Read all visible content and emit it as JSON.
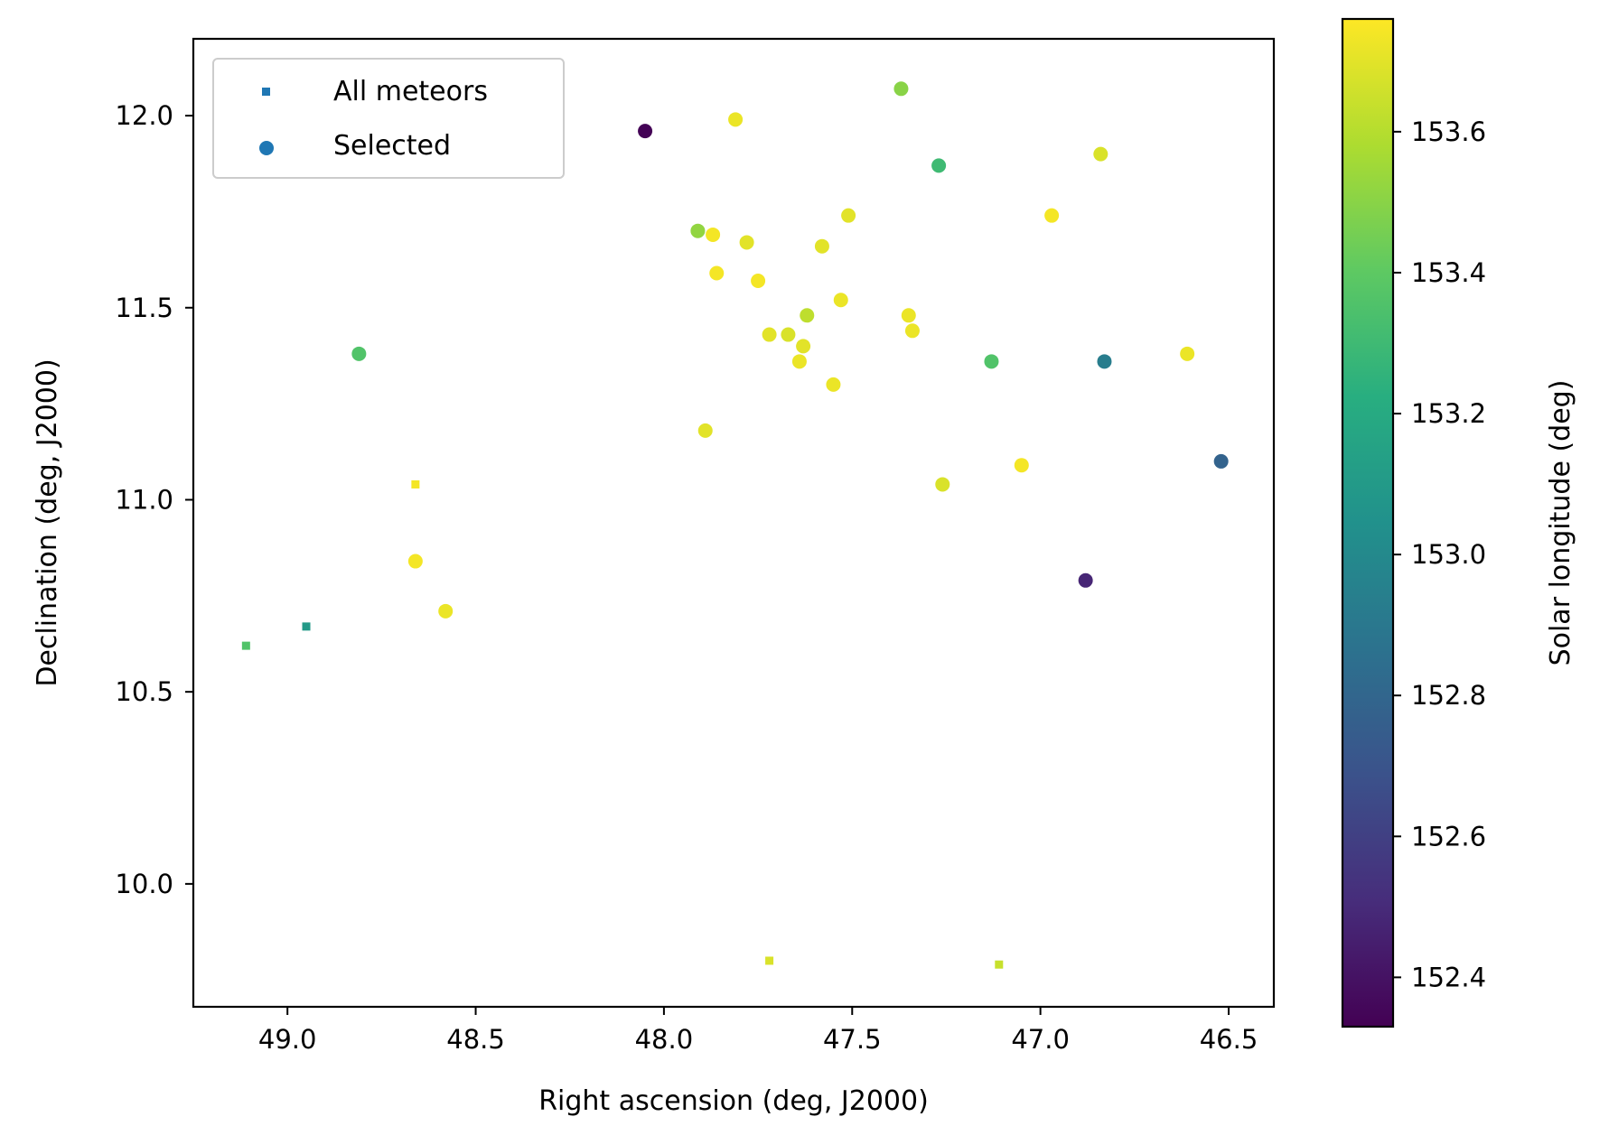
{
  "chart_data": {
    "type": "scatter",
    "xlabel": "Right ascension (deg, J2000)",
    "ylabel": "Declination (deg, J2000)",
    "xlim": [
      49.25,
      46.38
    ],
    "ylim": [
      9.68,
      12.2
    ],
    "x_inverted": true,
    "xticks": [
      49.0,
      48.5,
      48.0,
      47.5,
      47.0,
      46.5
    ],
    "yticks": [
      10.0,
      10.5,
      11.0,
      11.5,
      12.0
    ],
    "xtick_labels": [
      "49.0",
      "48.5",
      "48.0",
      "47.5",
      "47.0",
      "46.5"
    ],
    "ytick_labels": [
      "10.0",
      "10.5",
      "11.0",
      "11.5",
      "12.0"
    ],
    "grid": false,
    "legend": {
      "placement": "top-left",
      "entries": [
        {
          "label": "All meteors",
          "marker": "square",
          "color": "#1f77b4"
        },
        {
          "label": "Selected",
          "marker": "circle",
          "color": "#1f77b4"
        }
      ]
    },
    "colorbar": {
      "label": "Solar longitude (deg)",
      "colormap": "viridis",
      "range": [
        152.33,
        153.76
      ],
      "ticks": [
        152.4,
        152.6,
        152.8,
        153.0,
        153.2,
        153.4,
        153.6
      ],
      "tick_labels": [
        "152.4",
        "152.6",
        "152.8",
        "153.0",
        "153.2",
        "153.4",
        "153.6"
      ]
    },
    "series": [
      {
        "name": "All meteors",
        "marker": "square",
        "points": [
          {
            "x": 49.11,
            "y": 10.62,
            "c": 153.36
          },
          {
            "x": 48.95,
            "y": 10.67,
            "c": 153.1
          },
          {
            "x": 48.66,
            "y": 11.04,
            "c": 153.74
          },
          {
            "x": 47.72,
            "y": 9.8,
            "c": 153.68
          },
          {
            "x": 47.11,
            "y": 9.79,
            "c": 153.64
          }
        ]
      },
      {
        "name": "Selected",
        "marker": "circle",
        "points": [
          {
            "x": 48.05,
            "y": 11.96,
            "c": 152.34
          },
          {
            "x": 47.81,
            "y": 11.99,
            "c": 153.72
          },
          {
            "x": 47.37,
            "y": 12.07,
            "c": 153.5
          },
          {
            "x": 47.27,
            "y": 11.87,
            "c": 153.3
          },
          {
            "x": 46.84,
            "y": 11.9,
            "c": 153.68
          },
          {
            "x": 47.91,
            "y": 11.7,
            "c": 153.52
          },
          {
            "x": 47.87,
            "y": 11.69,
            "c": 153.74
          },
          {
            "x": 47.78,
            "y": 11.67,
            "c": 153.7
          },
          {
            "x": 47.51,
            "y": 11.74,
            "c": 153.7
          },
          {
            "x": 46.97,
            "y": 11.74,
            "c": 153.74
          },
          {
            "x": 47.86,
            "y": 11.59,
            "c": 153.74
          },
          {
            "x": 47.75,
            "y": 11.57,
            "c": 153.74
          },
          {
            "x": 47.58,
            "y": 11.66,
            "c": 153.7
          },
          {
            "x": 47.53,
            "y": 11.52,
            "c": 153.72
          },
          {
            "x": 47.62,
            "y": 11.48,
            "c": 153.62
          },
          {
            "x": 47.35,
            "y": 11.48,
            "c": 153.72
          },
          {
            "x": 47.34,
            "y": 11.44,
            "c": 153.72
          },
          {
            "x": 47.72,
            "y": 11.43,
            "c": 153.7
          },
          {
            "x": 47.67,
            "y": 11.43,
            "c": 153.68
          },
          {
            "x": 47.63,
            "y": 11.4,
            "c": 153.7
          },
          {
            "x": 47.64,
            "y": 11.36,
            "c": 153.72
          },
          {
            "x": 47.55,
            "y": 11.3,
            "c": 153.72
          },
          {
            "x": 48.81,
            "y": 11.38,
            "c": 153.36
          },
          {
            "x": 47.13,
            "y": 11.36,
            "c": 153.36
          },
          {
            "x": 46.83,
            "y": 11.36,
            "c": 152.93
          },
          {
            "x": 46.61,
            "y": 11.38,
            "c": 153.72
          },
          {
            "x": 47.89,
            "y": 11.18,
            "c": 153.7
          },
          {
            "x": 47.05,
            "y": 11.09,
            "c": 153.74
          },
          {
            "x": 46.52,
            "y": 11.1,
            "c": 152.78
          },
          {
            "x": 47.26,
            "y": 11.04,
            "c": 153.68
          },
          {
            "x": 48.66,
            "y": 10.84,
            "c": 153.74
          },
          {
            "x": 46.88,
            "y": 10.79,
            "c": 152.48
          },
          {
            "x": 48.58,
            "y": 10.71,
            "c": 153.72
          }
        ]
      }
    ]
  }
}
